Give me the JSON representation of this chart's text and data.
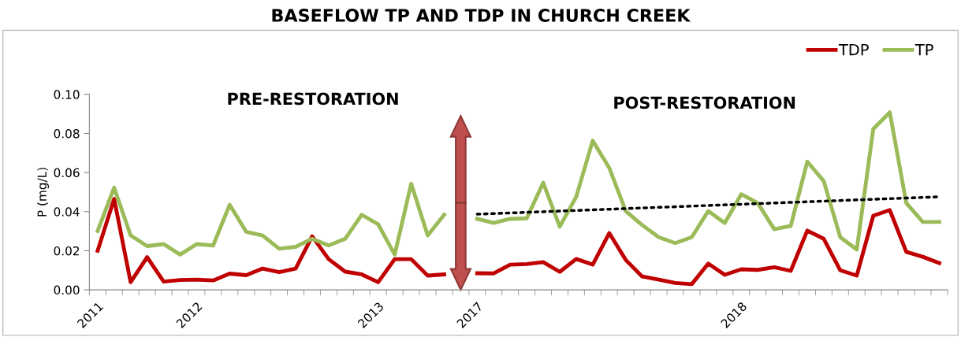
{
  "chart_data": {
    "type": "line",
    "title": "BASEFLOW TP AND TDP IN CHURCH CREEK",
    "ylabel": "P (mg/L)",
    "categories": [
      "2011",
      null,
      null,
      null,
      null,
      null,
      "2012",
      null,
      null,
      null,
      null,
      null,
      null,
      null,
      null,
      null,
      null,
      "2013",
      null,
      null,
      null,
      null,
      null,
      "2017",
      null,
      null,
      null,
      null,
      null,
      null,
      null,
      null,
      null,
      null,
      null,
      null,
      null,
      null,
      null,
      "2018",
      null,
      null,
      null,
      null,
      null,
      null,
      null,
      null,
      null,
      null,
      null,
      null
    ],
    "series": [
      {
        "name": "TDP",
        "color": "#c00000",
        "values": [
          0.02,
          0.0465,
          0.0039,
          0.0167,
          0.0042,
          0.005,
          0.0052,
          0.0048,
          0.0083,
          0.0075,
          0.0109,
          0.009,
          0.0109,
          0.0274,
          0.0157,
          0.0093,
          0.0079,
          0.0039,
          0.0157,
          0.0157,
          0.0073,
          0.0079,
          null,
          0.0085,
          0.0084,
          0.0129,
          0.0132,
          0.0142,
          0.0092,
          0.0158,
          0.0129,
          0.029,
          0.0153,
          0.0068,
          0.0052,
          0.0035,
          0.0029,
          0.0134,
          0.0077,
          0.0105,
          0.0102,
          0.0116,
          0.0097,
          0.0303,
          0.0261,
          0.01,
          0.0073,
          0.0379,
          0.0408,
          0.0194,
          0.0169,
          0.0137
        ]
      },
      {
        "name": "TP",
        "color": "#9bbb59",
        "values": [
          0.0301,
          0.0523,
          0.0278,
          0.0224,
          0.0234,
          0.018,
          0.0234,
          0.0227,
          0.0435,
          0.0297,
          0.0278,
          0.021,
          0.022,
          0.0261,
          0.0227,
          0.0261,
          0.0384,
          0.0335,
          0.018,
          0.0543,
          0.0278,
          0.0384,
          null,
          0.0363,
          0.0342,
          0.0363,
          0.0366,
          0.0548,
          0.0323,
          0.0476,
          0.0763,
          0.0624,
          0.0403,
          0.0331,
          0.0269,
          0.0239,
          0.0269,
          0.0403,
          0.0342,
          0.0489,
          0.0444,
          0.031,
          0.0327,
          0.0656,
          0.0556,
          0.0269,
          0.0206,
          0.0823,
          0.0908,
          0.0444,
          0.0347,
          0.0347
        ]
      },
      {
        "color": "#000000",
        "line_style": "dotted",
        "values": [
          null,
          null,
          null,
          null,
          null,
          null,
          null,
          null,
          null,
          null,
          null,
          null,
          null,
          null,
          null,
          null,
          null,
          null,
          null,
          null,
          null,
          null,
          null,
          0.0387,
          null,
          null,
          null,
          null,
          null,
          null,
          null,
          null,
          null,
          null,
          null,
          null,
          null,
          null,
          null,
          null,
          null,
          null,
          null,
          null,
          null,
          null,
          null,
          null,
          null,
          null,
          null,
          0.0476
        ]
      }
    ],
    "ylim": [
      0,
      0.1
    ],
    "yticks": [
      {
        "value": 0,
        "label": "0.00"
      },
      {
        "value": 0.02,
        "label": "0.02"
      },
      {
        "value": 0.04,
        "label": "0.04"
      },
      {
        "value": 0.06,
        "label": "0.06"
      },
      {
        "value": 0.08,
        "label": "0.08"
      },
      {
        "value": 0.1,
        "label": "0.10"
      }
    ],
    "annotations": [
      "PRE-RESTORATION",
      "POST-RESTORATION"
    ],
    "legend": "top right",
    "marker": "none",
    "line_style": "solid"
  }
}
